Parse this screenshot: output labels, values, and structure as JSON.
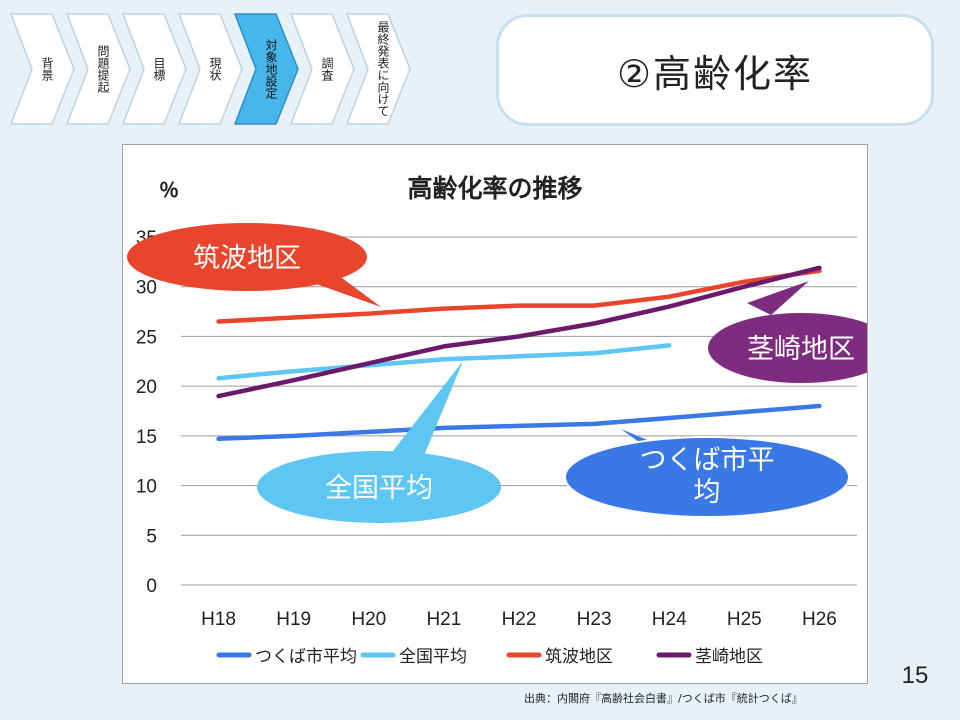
{
  "nav": {
    "steps": [
      {
        "label": "背景",
        "active": false
      },
      {
        "label": "問題提起",
        "active": false
      },
      {
        "label": "目標",
        "active": false
      },
      {
        "label": "現状",
        "active": false
      },
      {
        "label": "対象地設定",
        "active": true
      },
      {
        "label": "調査",
        "active": false
      },
      {
        "label": "最終発表に向けて",
        "active": false
      }
    ]
  },
  "slide": {
    "title": "②高齢化率",
    "page_number": "15",
    "source": "出典：内閣府『高齢社会白書』/つくば市『統計つくば』"
  },
  "callouts": {
    "tsukuba_district": "筑波地区",
    "kukizaki_district": "茎崎地区",
    "national_average": "全国平均",
    "tsukuba_city_average": "つくば市平均"
  },
  "colors": {
    "tsukuba_city": "#3a78e6",
    "national": "#5ec6f2",
    "tsukuba_district": "#e8452c",
    "kukizaki_district": "#6b1a6b",
    "kukizaki_callout": "#7e2c80",
    "active_step": "#47b6ea"
  },
  "chart_data": {
    "type": "line",
    "title": "高齢化率の推移",
    "ylabel": "％",
    "xlabel": "",
    "categories": [
      "H18",
      "H19",
      "H20",
      "H21",
      "H22",
      "H23",
      "H24",
      "H25",
      "H26"
    ],
    "ylim": [
      0,
      35
    ],
    "yticks": [
      0,
      5,
      10,
      15,
      20,
      25,
      30,
      35
    ],
    "grid": true,
    "legend_position": "bottom",
    "series": [
      {
        "name": "つくば市平均",
        "values": [
          14.7,
          15.0,
          15.4,
          15.8,
          16.0,
          16.2,
          16.8,
          17.4,
          18.0
        ]
      },
      {
        "name": "全国平均",
        "values": [
          20.8,
          21.5,
          22.1,
          22.7,
          23.0,
          23.3,
          24.1,
          null,
          null
        ]
      },
      {
        "name": "筑波地区",
        "values": [
          26.5,
          26.9,
          27.3,
          27.8,
          28.1,
          28.1,
          29.0,
          30.5,
          31.6
        ]
      },
      {
        "name": "茎崎地区",
        "values": [
          19.0,
          20.6,
          22.3,
          24.0,
          25.0,
          26.3,
          28.0,
          30.0,
          31.9
        ]
      }
    ]
  }
}
